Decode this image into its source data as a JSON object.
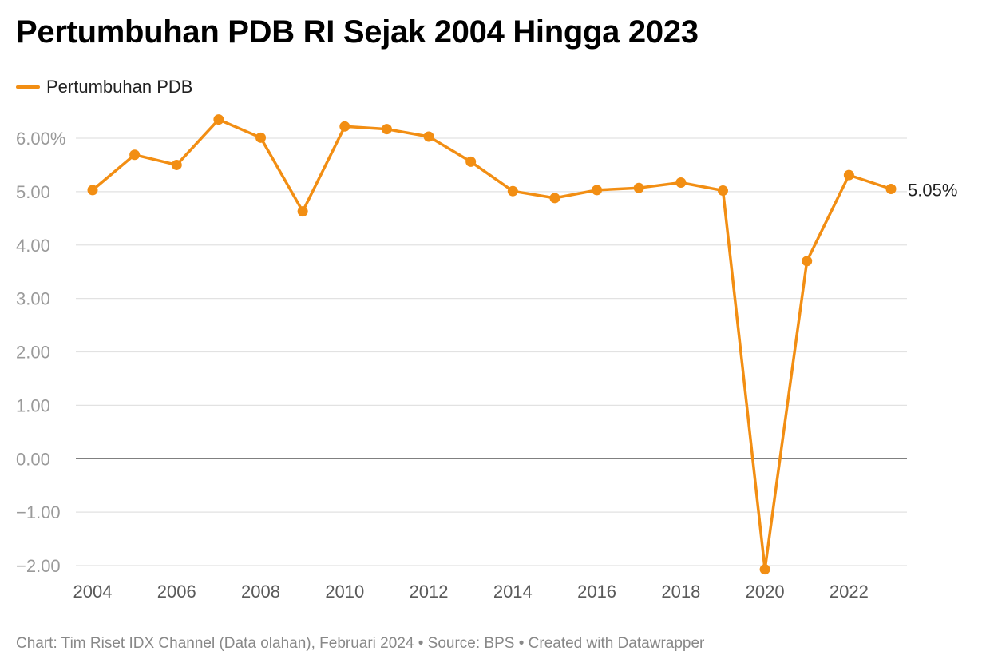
{
  "chart_data": {
    "type": "line",
    "title": "Pertumbuhan PDB RI Sejak 2004 Hingga 2023",
    "x": [
      2004,
      2005,
      2006,
      2007,
      2008,
      2009,
      2010,
      2011,
      2012,
      2013,
      2014,
      2015,
      2016,
      2017,
      2018,
      2019,
      2020,
      2021,
      2022,
      2023
    ],
    "series": [
      {
        "name": "Pertumbuhan PDB",
        "color": "#f28e13",
        "values": [
          5.03,
          5.69,
          5.5,
          6.35,
          6.01,
          4.63,
          6.22,
          6.17,
          6.03,
          5.56,
          5.01,
          4.88,
          5.03,
          5.07,
          5.17,
          5.02,
          -2.07,
          3.7,
          5.31,
          5.05
        ]
      }
    ],
    "ylim": [
      -2,
      6
    ],
    "xlim": [
      2004,
      2023
    ],
    "y_ticks": [
      6,
      5,
      4,
      3,
      2,
      1,
      0,
      -1,
      -2
    ],
    "y_tick_labels": [
      "6.00%",
      "5.00",
      "4.00",
      "3.00",
      "2.00",
      "1.00",
      "0.00",
      "−1.00",
      "−2.00"
    ],
    "x_ticks": [
      2004,
      2006,
      2008,
      2010,
      2012,
      2014,
      2016,
      2018,
      2020,
      2022
    ],
    "x_tick_labels": [
      "2004",
      "2006",
      "2008",
      "2010",
      "2012",
      "2014",
      "2016",
      "2018",
      "2020",
      "2022"
    ],
    "end_label": "5.05%",
    "legend_position": "top-left",
    "grid": true
  },
  "footer": "Chart: Tim Riset IDX Channel (Data olahan), Februari 2024 • Source: BPS • Created with Datawrapper"
}
